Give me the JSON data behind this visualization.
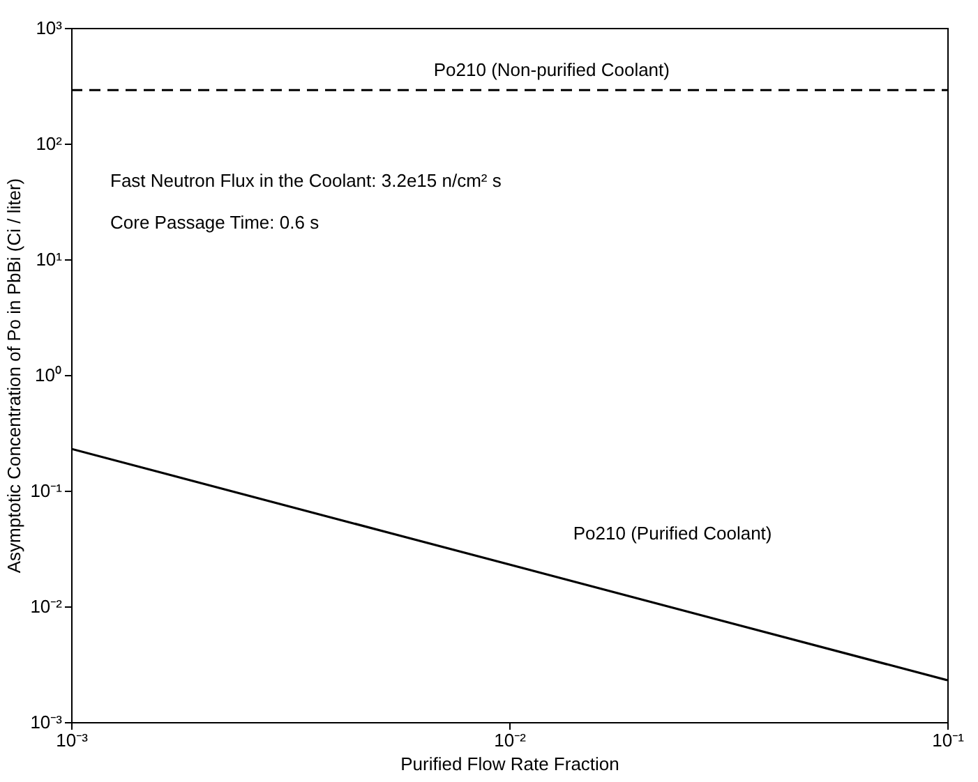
{
  "chart_data": {
    "type": "line",
    "xlabel": "Purified Flow Rate Fraction",
    "ylabel": "Asymptotic Concentration of Po in PbBi (Ci / liter)",
    "log": "xy",
    "grid": false,
    "marker": "none",
    "x": [
      0.001,
      0.1
    ],
    "xlim": [
      0.001,
      0.1
    ],
    "xticks": [
      {
        "value": 0.001,
        "label": "10⁻³"
      },
      {
        "value": 0.01,
        "label": "10⁻²"
      },
      {
        "value": 0.1,
        "label": "10⁻¹"
      }
    ],
    "ylim": [
      0.001,
      1000
    ],
    "yticks": [
      {
        "value": 0.001,
        "label": "10⁻³"
      },
      {
        "value": 0.01,
        "label": "10⁻²"
      },
      {
        "value": 0.1,
        "label": "10⁻¹"
      },
      {
        "value": 1,
        "label": "10⁰"
      },
      {
        "value": 10,
        "label": "10¹"
      },
      {
        "value": 100,
        "label": "10²"
      },
      {
        "value": 1000,
        "label": "10³"
      }
    ],
    "series": [
      {
        "name": "Po210 (Non-purified Coolant)",
        "color": "#000000",
        "line_style": "dashed",
        "values": [
          290,
          290
        ]
      },
      {
        "name": "Po210 (Purified Coolant)",
        "color": "#000000",
        "line_style": "solid",
        "values": [
          0.23,
          0.0023
        ]
      }
    ],
    "annotations": [
      "Fast Neutron Flux in the Coolant: 3.2e15 n/cm² s",
      "Core Passage Time: 0.6 s"
    ]
  }
}
